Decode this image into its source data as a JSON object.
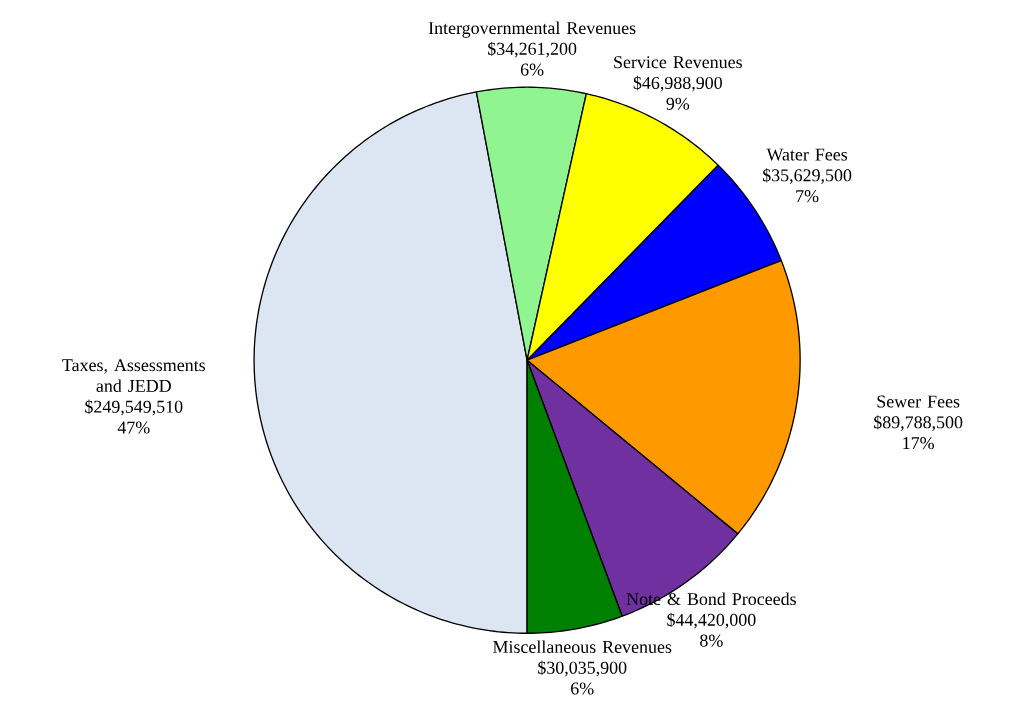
{
  "chart_data": {
    "type": "pie",
    "categories": [
      "Taxes, Assessments and JEDD",
      "Intergovernmental Revenues",
      "Service Revenues",
      "Water Fees",
      "Sewer Fees",
      "Note & Bond Proceeds",
      "Miscellaneous Revenues"
    ],
    "values": [
      249549510,
      34261200,
      46988900,
      35629500,
      89788500,
      44420000,
      30035900
    ],
    "colors": [
      "#dce6f2",
      "#90f590",
      "#ffff00",
      "#0000ff",
      "#ff9900",
      "#7030a0",
      "#008000"
    ],
    "value_labels": [
      "$249,549,510",
      "$34,261,200",
      "$46,988,900",
      "$35,629,500",
      "$89,788,500",
      "$44,420,000",
      "$30,035,900"
    ],
    "annotations": [
      "47%",
      "6%",
      "9%",
      "7%",
      "17%",
      "8%",
      "6%"
    ]
  }
}
